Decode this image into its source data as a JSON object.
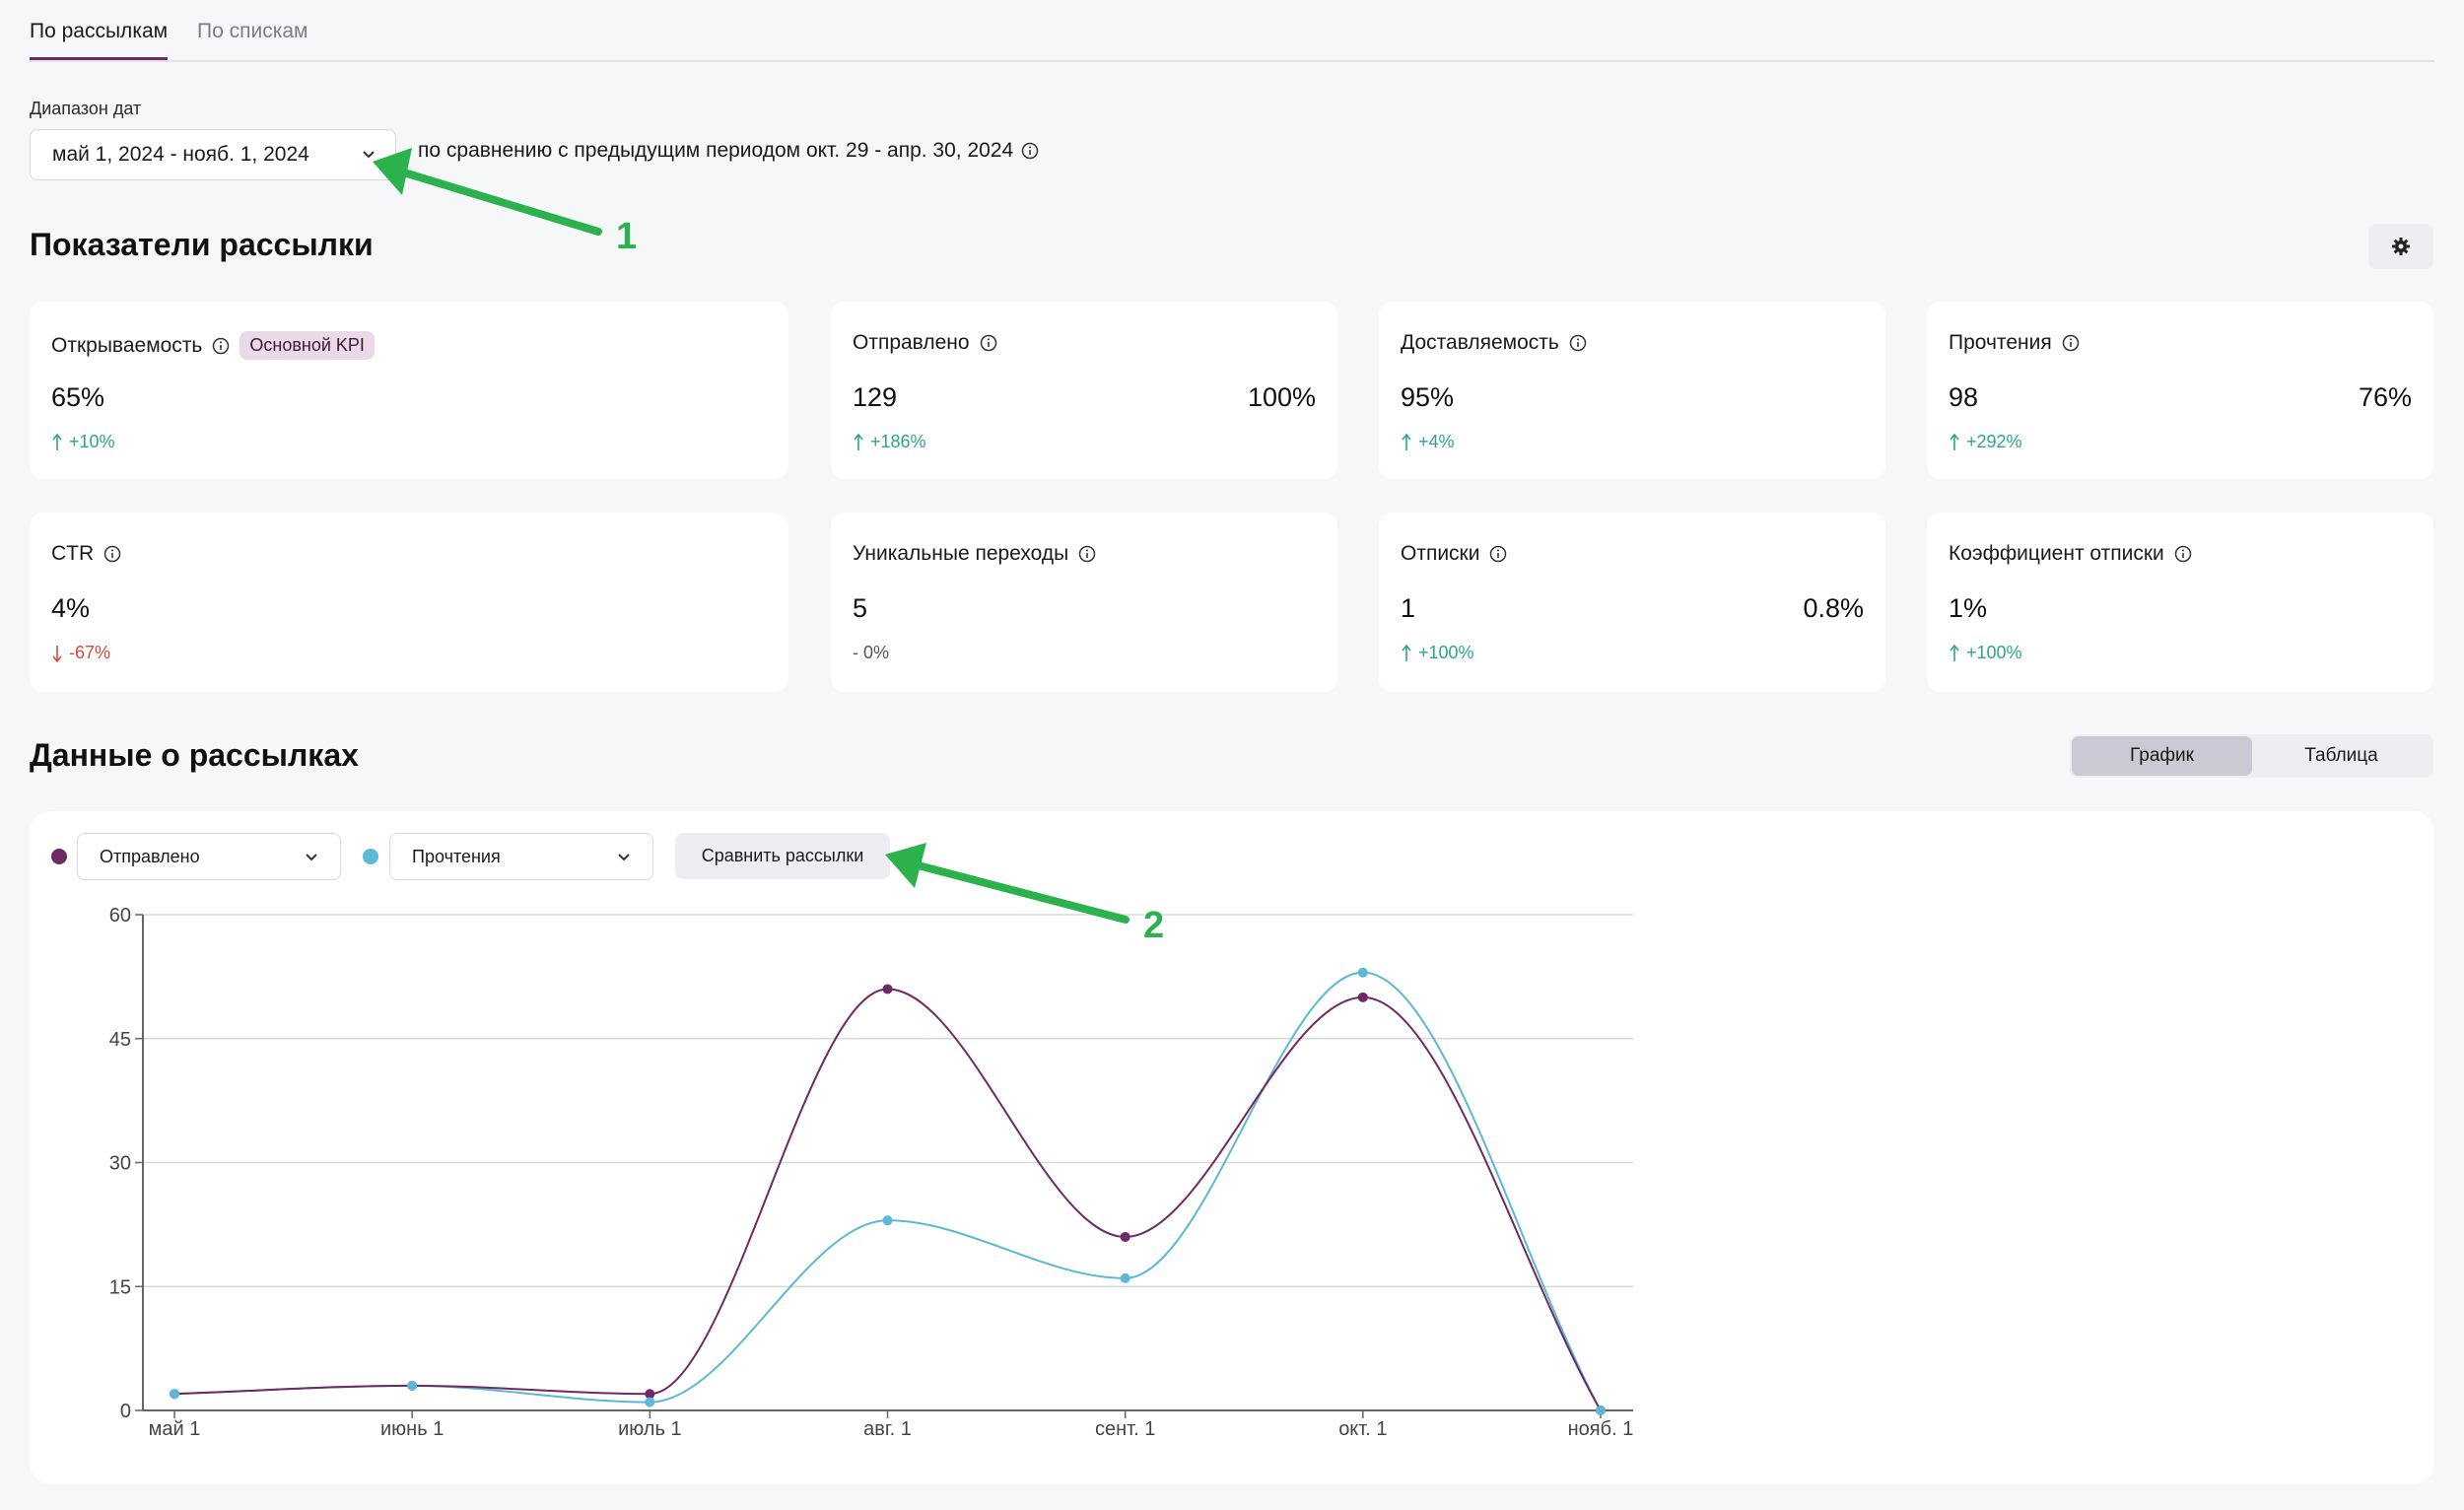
{
  "tabs": [
    {
      "label": "По рассылкам",
      "active": true
    },
    {
      "label": "По спискам",
      "active": false
    }
  ],
  "date_range": {
    "label": "Диапазон дат",
    "value": "май 1, 2024 - нояб. 1, 2024",
    "comparison_text": "по сравнению с предыдущим периодом окт. 29 - апр. 30, 2024"
  },
  "metrics_section": {
    "title": "Показатели рассылки",
    "cards": [
      {
        "title": "Открываемость",
        "badge": "Основной KPI",
        "value": "65%",
        "percent": "",
        "delta": "+10%",
        "trend": "up"
      },
      {
        "title": "Отправлено",
        "badge": "",
        "value": "129",
        "percent": "100%",
        "delta": "+186%",
        "trend": "up"
      },
      {
        "title": "Доставляемость",
        "badge": "",
        "value": "95%",
        "percent": "",
        "delta": "+4%",
        "trend": "up"
      },
      {
        "title": "Прочтения",
        "badge": "",
        "value": "98",
        "percent": "76%",
        "delta": "+292%",
        "trend": "up"
      },
      {
        "title": "CTR",
        "badge": "",
        "value": "4%",
        "percent": "",
        "delta": "-67%",
        "trend": "down"
      },
      {
        "title": "Уникальные переходы",
        "badge": "",
        "value": "5",
        "percent": "",
        "delta": "- 0%",
        "trend": "neutral"
      },
      {
        "title": "Отписки",
        "badge": "",
        "value": "1",
        "percent": "0.8%",
        "delta": "+100%",
        "trend": "up"
      },
      {
        "title": "Коэффициент отписки",
        "badge": "",
        "value": "1%",
        "percent": "",
        "delta": "+100%",
        "trend": "up"
      }
    ]
  },
  "data_section": {
    "title": "Данные о рассылках",
    "view_options": [
      "График",
      "Таблица"
    ],
    "selected_view": "График",
    "series_select_1": "Отправлено",
    "series_select_2": "Прочтения",
    "compare_button": "Сравнить рассылки"
  },
  "annotations": {
    "arrow_1": "1",
    "arrow_2": "2"
  },
  "colors": {
    "accent": "#6e2a63",
    "series_sent": "#6e2a63",
    "series_reads": "#5bb8d6",
    "up": "#2ea58a",
    "down": "#d9483b",
    "annotation": "#2bb24c"
  },
  "chart_data": {
    "type": "line",
    "categories": [
      "май 1",
      "июнь 1",
      "июль 1",
      "авг. 1",
      "сент. 1",
      "окт. 1",
      "нояб. 1"
    ],
    "series": [
      {
        "name": "Отправлено",
        "values": [
          2,
          3,
          2,
          51,
          21,
          50,
          0
        ]
      },
      {
        "name": "Прочтения",
        "values": [
          2,
          3,
          1,
          23,
          16,
          53,
          0
        ]
      }
    ],
    "yticks": [
      0,
      15,
      30,
      45,
      60
    ],
    "ylim": [
      0,
      60
    ],
    "grid": true
  }
}
